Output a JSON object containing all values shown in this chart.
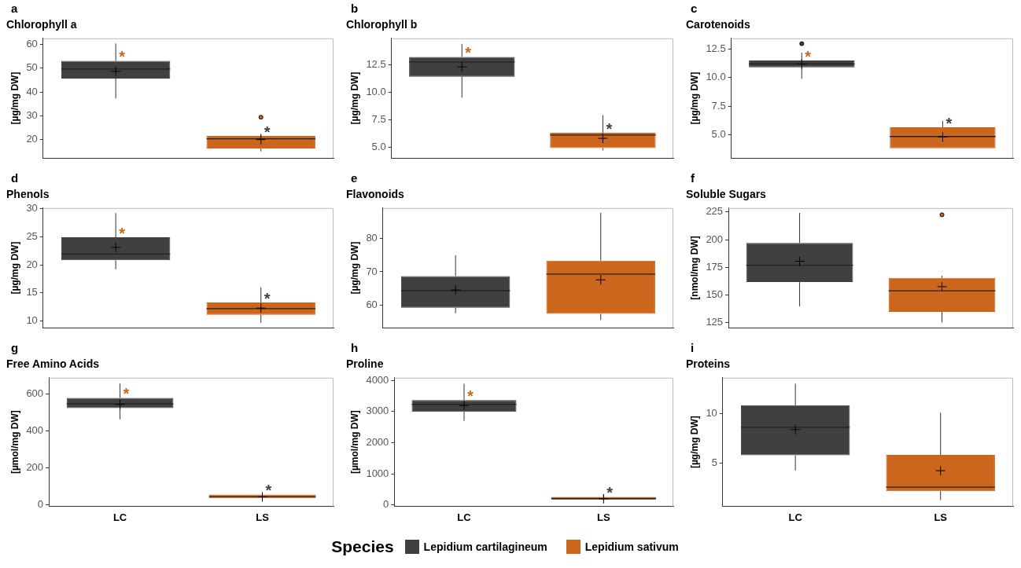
{
  "chart_data": [
    {
      "type": "box",
      "title": "Chlorophyll a",
      "ylabel": "[µg/mg DW]",
      "categories": [
        null,
        null
      ],
      "ylim": [
        12.2,
        62.6
      ],
      "yticks": [
        20,
        30,
        40,
        50,
        60
      ],
      "grid": false,
      "tick_labels": "y",
      "legend": false,
      "annotations": [
        "a",
        "*",
        "*"
      ],
      "series": [
        {
          "color": "#404040",
          "boxes": [
            {
              "low": 37.3,
              "q1": 45.7,
              "median": 49.7,
              "q3": 53.1,
              "high": 60.4,
              "mean": 48.7
            },
            null
          ]
        },
        {
          "color": "#cd661d",
          "boxes": [
            null,
            {
              "low": 15,
              "q1": 16.2,
              "median": 20.3,
              "q3": 21.5,
              "high": 22.4,
              "mean": 20,
              "outliers": [
                29.4
              ]
            }
          ]
        }
      ]
    },
    {
      "type": "box",
      "title": "Chlorophyll b",
      "ylabel": "[µg/mg DW]",
      "categories": [
        null,
        null
      ],
      "ylim": [
        4.0,
        14.9
      ],
      "yticks": [
        {
          "value": 5,
          "label": "5.0"
        },
        {
          "value": 7.5,
          "label": "7.5"
        },
        {
          "value": 10,
          "label": "10.0"
        },
        {
          "value": 12.5,
          "label": "12.5"
        }
      ],
      "grid": false,
      "tick_labels": "y",
      "legend": false,
      "annotations": [
        "b",
        "*",
        "*"
      ],
      "series": [
        {
          "color": "#404040",
          "boxes": [
            {
              "low": 9.5,
              "q1": 11.4,
              "median": 12.75,
              "q3": 13.2,
              "high": 14.4,
              "mean": 12.3
            },
            null
          ]
        },
        {
          "color": "#cd661d",
          "boxes": [
            null,
            {
              "low": 4.7,
              "q1": 4.9,
              "median": 6.1,
              "q3": 6.3,
              "high": 7.9,
              "mean": 5.8
            }
          ]
        }
      ]
    },
    {
      "type": "box",
      "title": "Carotenoids",
      "ylabel": "[µg/mg DW]",
      "categories": [
        null,
        null
      ],
      "ylim": [
        2.95,
        13.45
      ],
      "yticks": [
        {
          "value": 5,
          "label": "5.0"
        },
        {
          "value": 7.5,
          "label": "7.5"
        },
        {
          "value": 10,
          "label": "10.0"
        },
        {
          "value": 12.5,
          "label": "12.5"
        }
      ],
      "grid": false,
      "tick_labels": "y",
      "legend": false,
      "annotations": [
        "c",
        "*",
        "*"
      ],
      "series": [
        {
          "color": "#404040",
          "boxes": [
            {
              "low": 9.9,
              "q1": 10.9,
              "median": 11.2,
              "q3": 11.5,
              "high": 12.2,
              "mean": 11.2,
              "outliers": [
                12.98
              ]
            },
            null
          ]
        },
        {
          "color": "#cd661d",
          "boxes": [
            null,
            {
              "low": 3.8,
              "q1": 3.8,
              "median": 4.84,
              "q3": 5.65,
              "high": 6.2,
              "mean": 4.8
            }
          ]
        }
      ]
    },
    {
      "type": "box",
      "title": "Phenols",
      "ylabel": "[µg/mg DW]",
      "categories": [
        null,
        null
      ],
      "ylim": [
        8.8,
        30.1
      ],
      "yticks": [
        10,
        15,
        20,
        25,
        30
      ],
      "grid": false,
      "tick_labels": "y",
      "legend": false,
      "annotations": [
        "d",
        "*",
        "*"
      ],
      "series": [
        {
          "color": "#404040",
          "boxes": [
            {
              "low": 19.2,
              "q1": 20.8,
              "median": 21.9,
              "q3": 24.9,
              "high": 29.2,
              "mean": 23.1
            },
            null
          ]
        },
        {
          "color": "#cd661d",
          "boxes": [
            null,
            {
              "low": 9.7,
              "q1": 11.1,
              "median": 12.2,
              "q3": 13.3,
              "high": 16,
              "mean": 12.3
            }
          ]
        }
      ]
    },
    {
      "type": "box",
      "title": "Flavonoids",
      "ylabel": "[µg/mg DW]",
      "categories": [
        null,
        null
      ],
      "ylim": [
        53.4,
        88.9
      ],
      "yticks": [
        60,
        70,
        80
      ],
      "grid": false,
      "tick_labels": "y",
      "legend": false,
      "annotations": [
        "e"
      ],
      "series": [
        {
          "color": "#404040",
          "boxes": [
            {
              "low": 57.7,
              "q1": 59.3,
              "median": 64.4,
              "q3": 68.7,
              "high": 74.9,
              "mean": 64.6
            },
            null
          ]
        },
        {
          "color": "#cd661d",
          "boxes": [
            null,
            {
              "low": 55.7,
              "q1": 57.5,
              "median": 69.3,
              "q3": 73.3,
              "high": 87.5,
              "mean": 67.6
            }
          ]
        }
      ]
    },
    {
      "type": "box",
      "title": "Soluble Sugars",
      "ylabel": "[nmol/mg DW]",
      "categories": [
        null,
        null
      ],
      "ylim": [
        120.5,
        228.6
      ],
      "yticks": [
        125,
        150,
        175,
        200,
        225
      ],
      "grid": false,
      "tick_labels": "y",
      "legend": false,
      "annotations": [
        "f"
      ],
      "series": [
        {
          "color": "#404040",
          "boxes": [
            {
              "low": 139.9,
              "q1": 161.7,
              "median": 176.9,
              "q3": 197.1,
              "high": 224.2,
              "mean": 180.6
            },
            null
          ]
        },
        {
          "color": "#cd661d",
          "boxes": [
            null,
            {
              "low": 125.3,
              "q1": 134.8,
              "median": 153.9,
              "q3": 165.5,
              "high": 167.4,
              "mean": 157.6,
              "outliers": [
                222.5
              ]
            }
          ]
        }
      ]
    },
    {
      "type": "box",
      "title": "Free Amino Acids",
      "ylabel": "[µmol/mg DW]",
      "categories": [
        "LC",
        "LS"
      ],
      "ylim": [
        -8,
        688
      ],
      "yticks": [
        0,
        200,
        400,
        600
      ],
      "grid": false,
      "legend": false,
      "annotations": [
        "g",
        "*",
        "*"
      ],
      "series": [
        {
          "color": "#404040",
          "boxes": [
            {
              "low": 463,
              "q1": 523,
              "median": 546,
              "q3": 579,
              "high": 657,
              "mean": 544
            },
            null
          ]
        },
        {
          "color": "#cd661d",
          "boxes": [
            null,
            {
              "low": 26,
              "q1": 35,
              "median": 44,
              "q3": 55,
              "high": 62,
              "mean": 43
            }
          ]
        }
      ]
    },
    {
      "type": "box",
      "title": "Proline",
      "ylabel": "[µmol/mg DW]",
      "categories": [
        "LC",
        "LS"
      ],
      "ylim": [
        -40,
        4085
      ],
      "yticks": [
        0,
        1000,
        2000,
        3000,
        4000
      ],
      "grid": false,
      "legend": "bottom",
      "legend_title": "Species",
      "annotations": [
        "h",
        "*",
        "*"
      ],
      "series": [
        {
          "name": "Lepidium cartilagineum",
          "color": "#404040",
          "boxes": [
            {
              "low": 2700,
              "q1": 2992,
              "median": 3233,
              "q3": 3367,
              "high": 3892,
              "mean": 3191
            },
            null
          ]
        },
        {
          "name": "Lepidium sativum",
          "color": "#cd661d",
          "boxes": [
            null,
            {
              "low": 150,
              "q1": 170,
              "median": 210,
              "q3": 260,
              "high": 330,
              "mean": 200
            }
          ]
        }
      ]
    },
    {
      "type": "box",
      "title": "Proteins",
      "ylabel": "[µg/mg DW]",
      "categories": [
        "LC",
        "LS"
      ],
      "ylim": [
        0.64,
        13.65
      ],
      "yticks": [
        5,
        10
      ],
      "grid": false,
      "legend": false,
      "annotations": [
        "i"
      ],
      "series": [
        {
          "color": "#404040",
          "boxes": [
            {
              "low": 4.26,
              "q1": 5.8,
              "median": 8.63,
              "q3": 10.87,
              "high": 13.05,
              "mean": 8.4
            },
            null
          ]
        },
        {
          "color": "#cd661d",
          "boxes": [
            null,
            {
              "low": 1.25,
              "q1": 2.17,
              "median": 2.57,
              "q3": 5.84,
              "high": 10.1,
              "mean": 4.24
            }
          ]
        }
      ]
    }
  ]
}
